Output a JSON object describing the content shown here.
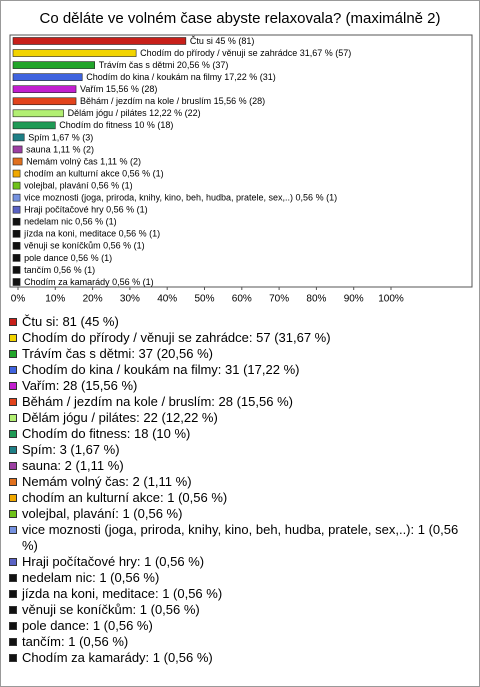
{
  "chart_data": {
    "type": "bar",
    "orientation": "horizontal",
    "title": "Co děláte ve volném čase abyste relaxovala? (maximálně 2)",
    "categories": [
      "Čtu si",
      "Chodím do přírody / věnuji se zahrádce",
      "Trávím čas s dětmi",
      "Chodím do kina / koukám na filmy",
      "Vařím",
      "Běhám / jezdím na kole / bruslím",
      "Dělám jógu / pilátes",
      "Chodím do fitness",
      "Spím",
      "sauna",
      "Nemám volný čas",
      "chodím an kulturní akce",
      "volejbal, plavání",
      "vice moznosti (joga, priroda, knihy, kino, beh, hudba, pratele, sex,..)",
      "Hraji počítačové hry",
      "nedelam nic",
      "jízda na koni, meditace",
      "věnuji se koníčkům",
      "pole dance",
      "tančím",
      "Chodím za kamarády"
    ],
    "values": [
      45,
      31.67,
      20.56,
      17.22,
      15.56,
      15.56,
      12.22,
      10,
      1.67,
      1.11,
      1.11,
      0.56,
      0.56,
      0.56,
      0.56,
      0.56,
      0.56,
      0.56,
      0.56,
      0.56,
      0.56
    ],
    "counts": [
      81,
      57,
      37,
      31,
      28,
      28,
      22,
      18,
      3,
      2,
      2,
      1,
      1,
      1,
      1,
      1,
      1,
      1,
      1,
      1,
      1
    ],
    "value_labels": [
      "Čtu si 45 % (81)",
      "Chodím do přírody / věnuji se zahrádce 31,67 % (57)",
      "Trávím čas s dětmi 20,56 % (37)",
      "Chodím do kina / koukám na filmy 17,22 % (31)",
      "Vařím 15,56 % (28)",
      "Běhám / jezdím na kole / bruslím 15,56 % (28)",
      "Dělám jógu / pilátes 12,22 % (22)",
      "Chodím do fitness 10 % (18)",
      "Spím 1,67 % (3)",
      "sauna 1,11 % (2)",
      "Nemám volný čas 1,11 % (2)",
      "chodím an kulturní akce 0,56 % (1)",
      "volejbal, plavání 0,56 % (1)",
      "vice moznosti (joga, priroda, knihy, kino, beh, hudba, pratele, sex,..) 0,56 % (1)",
      "Hraji počítačové hry 0,56 % (1)",
      "nedelam nic 0,56 % (1)",
      "jízda na koni, meditace 0,56 % (1)",
      "věnuji se koníčkům 0,56 % (1)",
      "pole dance 0,56 % (1)",
      "tančím 0,56 % (1)",
      "Chodím za kamarády 0,56 % (1)"
    ],
    "legend_labels": [
      "Čtu si: 81 (45 %)",
      "Chodím do přírody / věnuji se zahrádce: 57 (31,67 %)",
      "Trávím čas s dětmi: 37 (20,56 %)",
      "Chodím do kina / koukám na filmy: 31 (17,22 %)",
      "Vařím: 28 (15,56 %)",
      "Běhám / jezdím na kole / bruslím: 28 (15,56 %)",
      "Dělám jógu / pilátes: 22 (12,22 %)",
      "Chodím do fitness: 18 (10 %)",
      "Spím: 3 (1,67 %)",
      "sauna: 2 (1,11 %)",
      "Nemám volný čas: 2 (1,11 %)",
      "chodím an kulturní akce: 1 (0,56 %)",
      "volejbal, plavání: 1 (0,56 %)",
      "vice moznosti (joga, priroda, knihy, kino, beh, hudba, pratele, sex,..): 1 (0,56 %)",
      "Hraji počítačové hry: 1 (0,56 %)",
      "nedelam nic: 1 (0,56 %)",
      "jízda na koni, meditace: 1 (0,56 %)",
      "věnuji se koníčkům: 1 (0,56 %)",
      "pole dance: 1 (0,56 %)",
      "tančím: 1 (0,56 %)",
      "Chodím za kamarády: 1 (0,56 %)"
    ],
    "colors": [
      "#c8201a",
      "#f2d400",
      "#22a52a",
      "#3f63de",
      "#c21fcf",
      "#e2431c",
      "#b2ef72",
      "#1f9a55",
      "#1e7f86",
      "#9c3fa2",
      "#e0701e",
      "#f0a800",
      "#6fc21a",
      "#7592e0",
      "#5a62c4",
      "#111111",
      "#111111",
      "#111111",
      "#111111",
      "#111111",
      "#111111"
    ],
    "xlim": [
      0,
      100
    ],
    "xticks": [
      {
        "value": 0,
        "label": "0%"
      },
      {
        "value": 10,
        "label": "10%"
      },
      {
        "value": 20,
        "label": "20%"
      },
      {
        "value": 30,
        "label": "30%"
      },
      {
        "value": 40,
        "label": "40%"
      },
      {
        "value": 50,
        "label": "50%"
      },
      {
        "value": 60,
        "label": "60%"
      },
      {
        "value": 70,
        "label": "70%"
      },
      {
        "value": 80,
        "label": "80%"
      },
      {
        "value": 90,
        "label": "90%"
      },
      {
        "value": 100,
        "label": "100%"
      }
    ]
  }
}
